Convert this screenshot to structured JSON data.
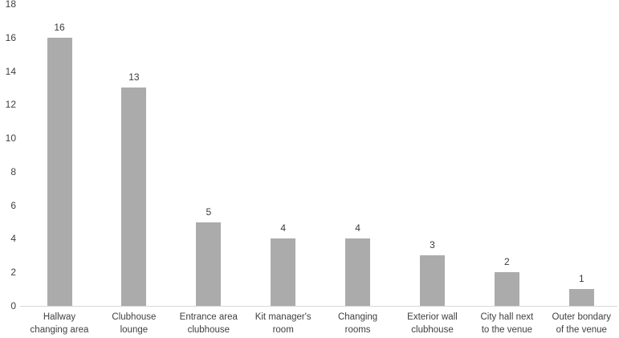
{
  "chart_data": {
    "type": "bar",
    "title": "",
    "xlabel": "",
    "ylabel": "",
    "categories": [
      "Hallway changing area",
      "Clubhouse lounge",
      "Entrance area clubhouse",
      "Kit manager's room",
      "Changing rooms",
      "Exterior wall clubhouse",
      "City hall next to the venue",
      "Outer bondary of the venue"
    ],
    "categories_lines": [
      [
        "Hallway",
        "changing area"
      ],
      [
        "Clubhouse",
        "lounge"
      ],
      [
        "Entrance area",
        "clubhouse"
      ],
      [
        "Kit manager's",
        "room"
      ],
      [
        "Changing",
        "rooms"
      ],
      [
        "Exterior wall",
        "clubhouse"
      ],
      [
        "City hall next",
        "to the venue"
      ],
      [
        "Outer bondary",
        "of the venue"
      ]
    ],
    "values": [
      16,
      13,
      5,
      4,
      4,
      3,
      2,
      1
    ],
    "data_labels": [
      "16",
      "13",
      "5",
      "4",
      "4",
      "3",
      "2",
      "1"
    ],
    "ylim": [
      0,
      18
    ],
    "yticks": [
      0,
      2,
      4,
      6,
      8,
      10,
      12,
      14,
      16,
      18
    ],
    "grid": false,
    "legend": false,
    "colors": {
      "bar": "#ababab",
      "axis_line": "#d9d9d9",
      "text": "#404040"
    }
  }
}
